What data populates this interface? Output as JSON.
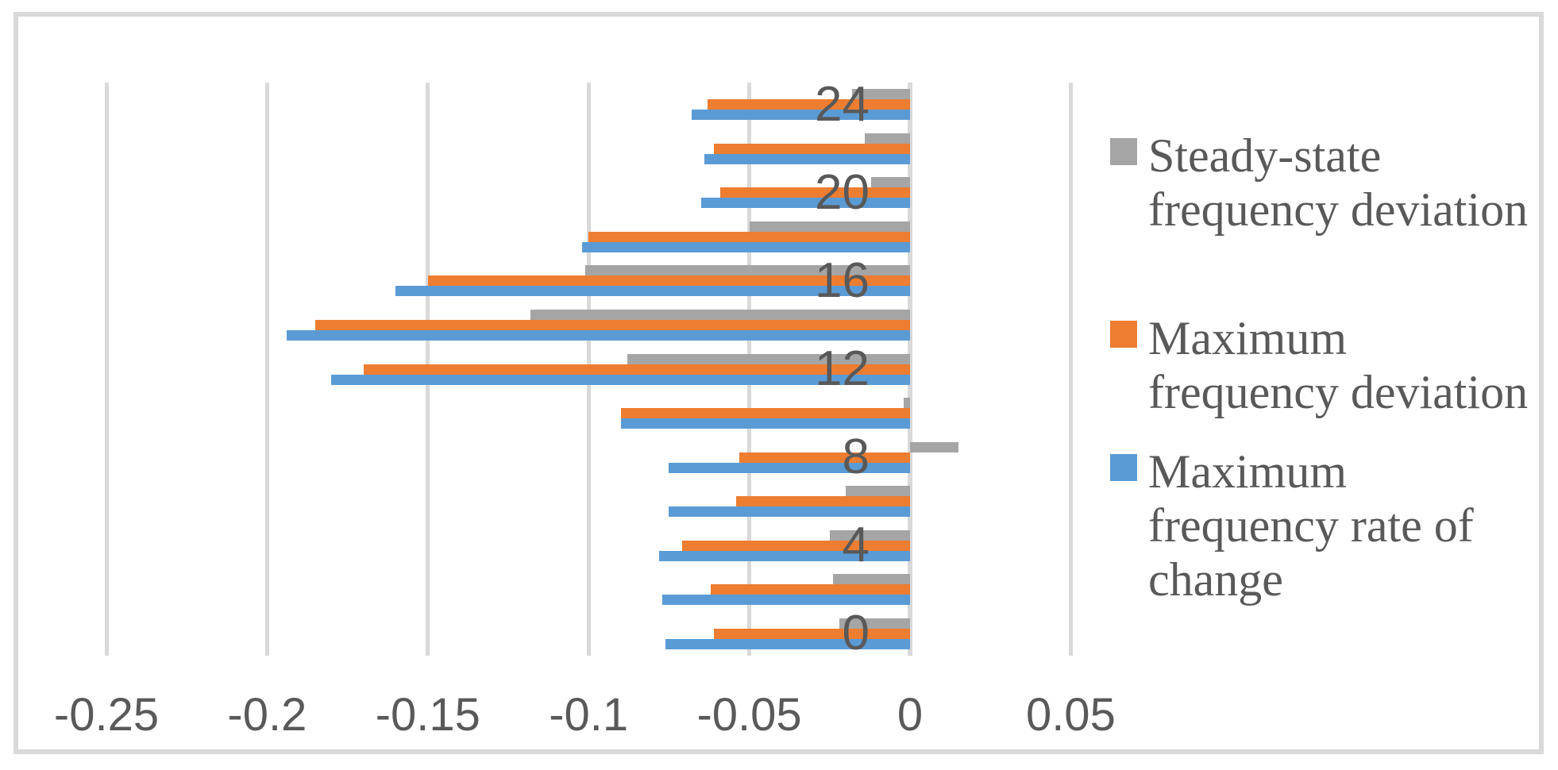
{
  "chart_data": {
    "type": "bar",
    "orientation": "horizontal",
    "title": "",
    "categories": [
      "0",
      "2",
      "4",
      "6",
      "8",
      "10",
      "12",
      "14",
      "16",
      "18",
      "20",
      "22",
      "24"
    ],
    "labeled_categories": [
      "0",
      "4",
      "8",
      "12",
      "16",
      "20",
      "24"
    ],
    "series": [
      {
        "name": "Steady-state frequency deviation",
        "color": "#A5A5A5",
        "values": [
          -0.022,
          -0.024,
          -0.025,
          -0.02,
          0.015,
          -0.002,
          -0.088,
          -0.118,
          -0.101,
          -0.05,
          -0.012,
          -0.014,
          -0.018
        ]
      },
      {
        "name": "Maximum frequency deviation",
        "color": "#ED7D31",
        "values": [
          -0.061,
          -0.062,
          -0.071,
          -0.054,
          -0.053,
          -0.09,
          -0.17,
          -0.185,
          -0.15,
          -0.1,
          -0.059,
          -0.061,
          -0.063
        ]
      },
      {
        "name": "Maximum frequency rate of change",
        "color": "#5B9BD5",
        "values": [
          -0.076,
          -0.077,
          -0.078,
          -0.075,
          -0.075,
          -0.09,
          -0.18,
          -0.194,
          -0.16,
          -0.102,
          -0.065,
          -0.064,
          -0.068
        ]
      }
    ],
    "x_axis": {
      "min": -0.25,
      "max": 0.05,
      "tick_values": [
        -0.25,
        -0.2,
        -0.15,
        -0.1,
        -0.05,
        0,
        0.05
      ],
      "ticks": [
        "-0.25",
        "-0.2",
        "-0.15",
        "-0.1",
        "-0.05",
        "0",
        "0.05"
      ]
    },
    "y_axis": {
      "order_top_to_bottom": [
        "24",
        "22",
        "20",
        "18",
        "16",
        "14",
        "12",
        "10",
        "8",
        "6",
        "4",
        "2",
        "0"
      ]
    },
    "legend_position": "right",
    "grid": true,
    "colors": {
      "background": "#FFFFFF",
      "border": "#D9D9D9",
      "gridline": "#D9D9D9",
      "text": "#595959"
    }
  }
}
